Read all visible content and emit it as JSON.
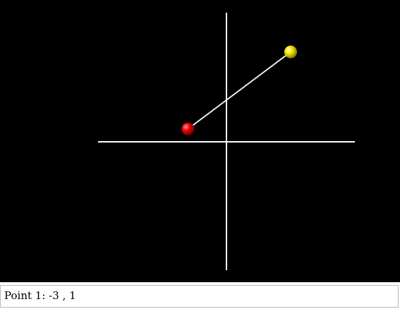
{
  "scene": {
    "background_color": "#000000",
    "axis_color": "#ffffff",
    "segment_color": "#e8e8e8",
    "points": [
      {
        "name": "point-1",
        "x": -3,
        "y": 1,
        "color": "#ff0000"
      },
      {
        "name": "point-2",
        "x": 5,
        "y": 7,
        "color": "#ffee00"
      }
    ]
  },
  "status": {
    "point_label": "Point 1:",
    "point_x": "-3",
    "separator": ",",
    "point_y": "1"
  }
}
